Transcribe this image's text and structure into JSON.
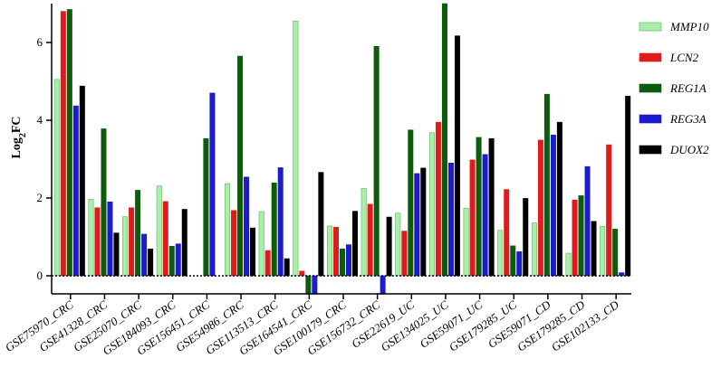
{
  "chart_data": {
    "type": "bar",
    "ylabel": "Log2FC",
    "ylim": [
      -0.5,
      7
    ],
    "yticks": [
      0,
      2,
      4,
      6
    ],
    "grid": false,
    "legend_placement": "right",
    "categories": [
      "GSE75970_CRC",
      "GSE41328_CRC",
      "GSE25070_CRC",
      "GSE184093_CRC",
      "GSE156451_CRC",
      "GSE54986_CRC",
      "GSE113513_CRC",
      "GSE164541_CRC",
      "GSE100179_CRC",
      "GSE156732_CRC",
      "GSE22619_UC",
      "GSE134025_UC",
      "GSE59071_UC",
      "GSE179285_UC",
      "GSE59071_CD",
      "GSE179285_CD",
      "GSE102133_CD"
    ],
    "series": [
      {
        "name": "MMP10",
        "color": "#a8f0a8",
        "stroke": "#60b060",
        "values": [
          5.05,
          1.97,
          1.52,
          2.31,
          0.0,
          2.37,
          1.65,
          6.55,
          1.28,
          2.25,
          1.61,
          3.68,
          1.74,
          1.17,
          1.36,
          0.58,
          1.27
        ]
      },
      {
        "name": "LCN2",
        "color": "#e01b1b",
        "stroke": "#e01b1b",
        "values": [
          6.8,
          1.75,
          1.75,
          1.91,
          0.0,
          1.68,
          0.65,
          0.12,
          1.25,
          1.84,
          1.15,
          3.95,
          2.98,
          2.22,
          3.49,
          1.95,
          3.37
        ]
      },
      {
        "name": "REG1A",
        "color": "#0d5c0d",
        "stroke": "#0d5c0d",
        "values": [
          6.85,
          3.78,
          2.2,
          0.76,
          3.53,
          5.65,
          2.39,
          -0.47,
          0.69,
          5.9,
          3.75,
          7.0,
          3.56,
          0.77,
          4.67,
          2.06,
          1.2
        ]
      },
      {
        "name": "REG3A",
        "color": "#1c1ccc",
        "stroke": "#1c1ccc",
        "values": [
          4.37,
          1.9,
          1.07,
          0.82,
          4.7,
          2.54,
          2.78,
          -0.47,
          0.8,
          -0.47,
          2.63,
          2.9,
          3.12,
          0.62,
          3.62,
          2.81,
          0.08
        ]
      },
      {
        "name": "DUOX2",
        "color": "#000000",
        "stroke": "#000000",
        "values": [
          4.88,
          1.1,
          0.69,
          1.71,
          0.0,
          1.23,
          0.44,
          2.66,
          1.66,
          1.51,
          2.77,
          6.17,
          3.53,
          1.99,
          3.95,
          1.4,
          4.62
        ]
      }
    ]
  }
}
